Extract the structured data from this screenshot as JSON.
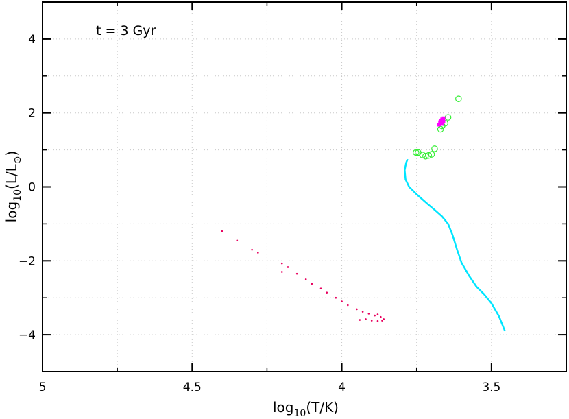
{
  "chart_data": {
    "type": "scatter",
    "title": "",
    "annotation": "t = 3 Gyr",
    "xlabel": {
      "prefix": "log",
      "sub": "10",
      "suffix": "(T/K)"
    },
    "ylabel": {
      "prefix": "log",
      "sub": "10",
      "suffix": "(L/L",
      "sun_symbol": "⊙",
      "close": ")"
    },
    "xlim": [
      5.0,
      3.25
    ],
    "ylim": [
      -5.0,
      5.0
    ],
    "x_ticks": [
      5.0,
      4.5,
      4.0,
      3.5
    ],
    "x_tick_labels": [
      "5",
      "4.5",
      "4",
      "3.5"
    ],
    "y_ticks": [
      4,
      2,
      0,
      -2,
      -4
    ],
    "y_tick_labels": [
      "4",
      "2",
      "0",
      "−2",
      "−4"
    ],
    "grid": true,
    "legend": "none",
    "series": [
      {
        "marker": "line",
        "color": "#00e5ff",
        "points": [
          [
            3.78,
            0.75
          ],
          [
            3.785,
            0.65
          ],
          [
            3.79,
            0.45
          ],
          [
            3.787,
            0.2
          ],
          [
            3.775,
            0.0
          ],
          [
            3.75,
            -0.2
          ],
          [
            3.715,
            -0.45
          ],
          [
            3.69,
            -0.62
          ],
          [
            3.665,
            -0.8
          ],
          [
            3.645,
            -1.0
          ],
          [
            3.63,
            -1.3
          ],
          [
            3.615,
            -1.7
          ],
          [
            3.6,
            -2.05
          ],
          [
            3.575,
            -2.4
          ],
          [
            3.55,
            -2.7
          ],
          [
            3.525,
            -2.9
          ],
          [
            3.5,
            -3.15
          ],
          [
            3.475,
            -3.5
          ],
          [
            3.455,
            -3.9
          ]
        ]
      },
      {
        "marker": "dot",
        "color": "#e8005e",
        "points": [
          [
            4.4,
            -1.2
          ],
          [
            4.35,
            -1.45
          ],
          [
            4.3,
            -1.7
          ],
          [
            4.28,
            -1.78
          ],
          [
            4.2,
            -2.07
          ],
          [
            4.2,
            -2.3
          ],
          [
            4.18,
            -2.17
          ],
          [
            4.15,
            -2.35
          ],
          [
            4.12,
            -2.5
          ],
          [
            4.1,
            -2.62
          ],
          [
            4.07,
            -2.75
          ],
          [
            4.05,
            -2.86
          ],
          [
            4.02,
            -3.0
          ],
          [
            4.0,
            -3.1
          ],
          [
            3.98,
            -3.2
          ],
          [
            3.95,
            -3.31
          ],
          [
            3.93,
            -3.38
          ],
          [
            3.91,
            -3.43
          ],
          [
            3.89,
            -3.48
          ],
          [
            3.87,
            -3.52
          ],
          [
            3.86,
            -3.58
          ],
          [
            3.865,
            -3.62
          ],
          [
            3.88,
            -3.63
          ],
          [
            3.9,
            -3.62
          ],
          [
            3.92,
            -3.58
          ],
          [
            3.94,
            -3.6
          ],
          [
            3.88,
            -3.45
          ]
        ]
      },
      {
        "marker": "open-circle",
        "color": "#33ee33",
        "points": [
          [
            3.61,
            2.38
          ],
          [
            3.645,
            1.88
          ],
          [
            3.655,
            1.72
          ],
          [
            3.67,
            1.56
          ],
          [
            3.665,
            1.65
          ],
          [
            3.69,
            1.03
          ],
          [
            3.7,
            0.88
          ],
          [
            3.71,
            0.85
          ],
          [
            3.72,
            0.83
          ],
          [
            3.73,
            0.86
          ],
          [
            3.745,
            0.93
          ],
          [
            3.752,
            0.93
          ]
        ]
      },
      {
        "marker": "square",
        "color": "#ff00ff",
        "points": [
          [
            3.665,
            1.83
          ],
          [
            3.67,
            1.8
          ],
          [
            3.672,
            1.75
          ],
          [
            3.668,
            1.72
          ],
          [
            3.66,
            1.78
          ],
          [
            3.675,
            1.68
          ],
          [
            3.66,
            1.86
          ],
          [
            3.663,
            1.7
          ]
        ]
      }
    ]
  }
}
